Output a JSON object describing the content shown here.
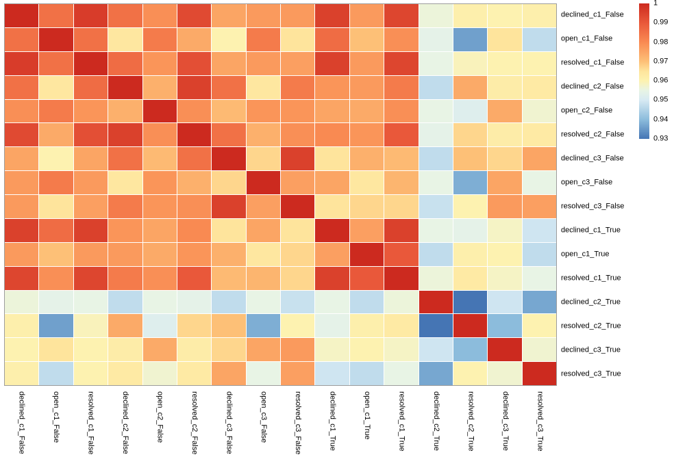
{
  "figure": {
    "background": "#ffffff",
    "grid_color": "#9c9c9c",
    "text_color": "#000000"
  },
  "chart_data": {
    "type": "heatmap",
    "title": "",
    "xlabel": "",
    "ylabel": "",
    "legend_position": "right-top",
    "grid": true,
    "vmin": 0.93,
    "vmax": 1.0,
    "row_labels": [
      "declined_c1_False",
      "open_c1_False",
      "resolved_c1_False",
      "declined_c2_False",
      "open_c2_False",
      "resolved_c2_False",
      "declined_c3_False",
      "open_c3_False",
      "resolved_c3_False",
      "declined_c1_True",
      "open_c1_True",
      "resolved_c1_True",
      "declined_c2_True",
      "resolved_c2_True",
      "declined_c3_True",
      "resolved_c3_True"
    ],
    "col_labels": [
      "declined_c1_False",
      "open_c1_False",
      "resolved_c1_False",
      "declined_c2_False",
      "open_c2_False",
      "resolved_c2_False",
      "declined_c3_False",
      "open_c3_False",
      "resolved_c3_False",
      "declined_c1_True",
      "open_c1_True",
      "resolved_c1_True",
      "declined_c2_True",
      "resolved_c2_True",
      "declined_c3_True",
      "resolved_c3_True"
    ],
    "matrix": [
      [
        1.0,
        0.985,
        0.996,
        0.985,
        0.979,
        0.993,
        0.975,
        0.977,
        0.977,
        0.995,
        0.977,
        0.994,
        0.956,
        0.961,
        0.96,
        0.961
      ],
      [
        0.985,
        1.0,
        0.985,
        0.964,
        0.983,
        0.974,
        0.96,
        0.983,
        0.965,
        0.986,
        0.97,
        0.979,
        0.954,
        0.936,
        0.965,
        0.947
      ],
      [
        0.996,
        0.985,
        1.0,
        0.986,
        0.978,
        0.992,
        0.975,
        0.977,
        0.976,
        0.995,
        0.977,
        0.994,
        0.955,
        0.959,
        0.96,
        0.96
      ],
      [
        0.985,
        0.964,
        0.986,
        1.0,
        0.973,
        0.995,
        0.985,
        0.964,
        0.983,
        0.978,
        0.977,
        0.983,
        0.947,
        0.974,
        0.962,
        0.963
      ],
      [
        0.979,
        0.983,
        0.978,
        0.973,
        1.0,
        0.979,
        0.971,
        0.978,
        0.978,
        0.975,
        0.974,
        0.979,
        0.955,
        0.952,
        0.974,
        0.957
      ],
      [
        0.993,
        0.974,
        0.992,
        0.995,
        0.979,
        1.0,
        0.985,
        0.973,
        0.979,
        0.98,
        0.978,
        0.99,
        0.954,
        0.967,
        0.962,
        0.963
      ],
      [
        0.975,
        0.96,
        0.975,
        0.985,
        0.971,
        0.985,
        1.0,
        0.967,
        0.995,
        0.965,
        0.973,
        0.971,
        0.947,
        0.97,
        0.967,
        0.975
      ],
      [
        0.977,
        0.983,
        0.977,
        0.964,
        0.978,
        0.973,
        0.967,
        1.0,
        0.976,
        0.975,
        0.964,
        0.972,
        0.955,
        0.938,
        0.975,
        0.955
      ],
      [
        0.977,
        0.965,
        0.976,
        0.983,
        0.978,
        0.979,
        0.995,
        0.976,
        1.0,
        0.965,
        0.967,
        0.967,
        0.948,
        0.96,
        0.977,
        0.976
      ],
      [
        0.995,
        0.986,
        0.995,
        0.978,
        0.975,
        0.98,
        0.965,
        0.975,
        0.965,
        1.0,
        0.976,
        0.995,
        0.955,
        0.954,
        0.958,
        0.949
      ],
      [
        0.977,
        0.97,
        0.977,
        0.977,
        0.974,
        0.978,
        0.973,
        0.964,
        0.967,
        0.976,
        1.0,
        0.99,
        0.947,
        0.961,
        0.96,
        0.947
      ],
      [
        0.994,
        0.979,
        0.994,
        0.983,
        0.979,
        0.99,
        0.971,
        0.972,
        0.967,
        0.995,
        0.99,
        1.0,
        0.956,
        0.963,
        0.958,
        0.955
      ],
      [
        0.956,
        0.954,
        0.955,
        0.947,
        0.955,
        0.954,
        0.947,
        0.955,
        0.948,
        0.955,
        0.947,
        0.956,
        1.0,
        0.93,
        0.949,
        0.937
      ],
      [
        0.961,
        0.936,
        0.959,
        0.974,
        0.952,
        0.967,
        0.97,
        0.938,
        0.96,
        0.954,
        0.961,
        0.963,
        0.93,
        1.0,
        0.94,
        0.96
      ],
      [
        0.96,
        0.965,
        0.96,
        0.962,
        0.974,
        0.962,
        0.967,
        0.975,
        0.977,
        0.958,
        0.96,
        0.958,
        0.949,
        0.94,
        1.0,
        0.957
      ],
      [
        0.961,
        0.947,
        0.96,
        0.963,
        0.957,
        0.963,
        0.975,
        0.955,
        0.976,
        0.949,
        0.947,
        0.955,
        0.937,
        0.96,
        0.957,
        1.0
      ]
    ],
    "colorbar": {
      "ticks": [
        {
          "label": "1",
          "value": 1.0
        },
        {
          "label": "0.99",
          "value": 0.99
        },
        {
          "label": "0.98",
          "value": 0.98
        },
        {
          "label": "0.97",
          "value": 0.97
        },
        {
          "label": "0.96",
          "value": 0.96
        },
        {
          "label": "0.95",
          "value": 0.95
        },
        {
          "label": "0.94",
          "value": 0.94
        },
        {
          "label": "0.93",
          "value": 0.93
        }
      ]
    },
    "colormap": {
      "name": "RdYlBu_r",
      "stops": [
        [
          0.0,
          "#4575b4"
        ],
        [
          0.143,
          "#8cbcdc"
        ],
        [
          0.286,
          "#d7eaf3"
        ],
        [
          0.357,
          "#e8f4e5"
        ],
        [
          0.429,
          "#fdf2b0"
        ],
        [
          0.5,
          "#fee49c"
        ],
        [
          0.571,
          "#fdc077"
        ],
        [
          0.714,
          "#f98a52"
        ],
        [
          0.857,
          "#e9583a"
        ],
        [
          1.0,
          "#cc2a1f"
        ]
      ]
    }
  }
}
